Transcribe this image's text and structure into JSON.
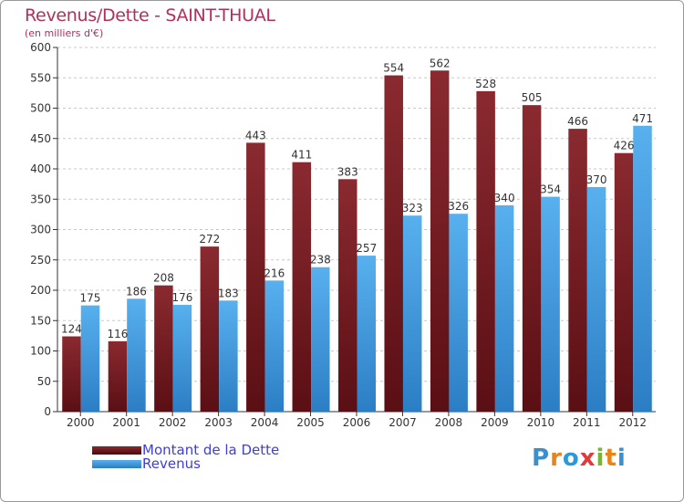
{
  "header": {
    "title": "Revenus/Dette - SAINT-THUAL",
    "subtitle": "(en milliers d'€)"
  },
  "logo": {
    "letters": [
      "P",
      "r",
      "o",
      "x",
      "i",
      "t",
      "i"
    ],
    "colors": [
      "#3a8fd0",
      "#e8841a",
      "#2c9ad8",
      "#e23a3a",
      "#7ab532",
      "#e8841a",
      "#3a8fd0"
    ]
  },
  "chart_data": {
    "type": "bar",
    "categories": [
      "2000",
      "2001",
      "2002",
      "2003",
      "2004",
      "2005",
      "2006",
      "2007",
      "2008",
      "2009",
      "2010",
      "2011",
      "2012"
    ],
    "series": [
      {
        "name": "Montant de la Dette",
        "color": "#7a1f24",
        "values": [
          124,
          116,
          208,
          272,
          443,
          411,
          383,
          554,
          562,
          528,
          505,
          466,
          426
        ]
      },
      {
        "name": "Revenus",
        "color": "#4aa3e6",
        "values": [
          175,
          186,
          176,
          183,
          216,
          238,
          257,
          323,
          326,
          340,
          354,
          370,
          471
        ]
      }
    ],
    "yticks": [
      "0",
      "50",
      "100",
      "150",
      "200",
      "250",
      "300",
      "350",
      "400",
      "450",
      "500",
      "550",
      "600"
    ],
    "ylim": [
      0,
      600
    ],
    "grid": true,
    "legend": "bottom-left"
  }
}
